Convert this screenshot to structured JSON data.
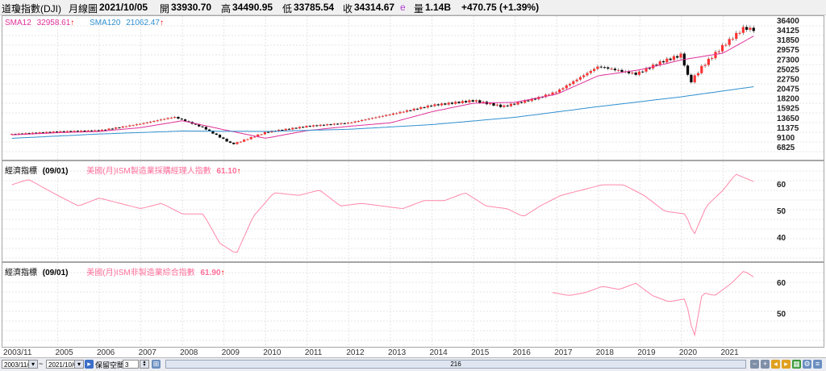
{
  "header": {
    "symbol": "道瓊指數(DJI)",
    "period": "月線圖",
    "date": "2021/10/05",
    "open_label": "開",
    "open": "33930.70",
    "high_label": "高",
    "high": "34490.95",
    "low_label": "低",
    "low": "33785.54",
    "close_label": "收",
    "close": "34314.67",
    "close_flag": "e",
    "volume_label": "量",
    "volume": "1.14B",
    "change": "+470.75 (+1.39%)"
  },
  "main_pane": {
    "sma12_label": "SMA12",
    "sma12_value": "32958.61",
    "sma120_label": "SMA120",
    "sma120_value": "21062.47",
    "arrow": "↑",
    "y_ticks": [
      "36400",
      "34125",
      "31850",
      "29575",
      "27300",
      "25025",
      "22750",
      "20475",
      "18200",
      "15925",
      "13650",
      "11375",
      "9100",
      "6825"
    ]
  },
  "pane2": {
    "label": "經濟指標",
    "date": "(09/01)",
    "series_name": "美國(月)ISM製造業採購經理人指數",
    "value": "61.10",
    "arrow": "↑",
    "y_ticks": [
      "60",
      "50",
      "40"
    ]
  },
  "pane3": {
    "label": "經濟指標",
    "date": "(09/01)",
    "series_name": "美國(月)ISM非製造業綜合指數",
    "value": "61.90",
    "arrow": "↑",
    "y_ticks": [
      "60",
      "50"
    ]
  },
  "x_axis": [
    "2003/11",
    "2005",
    "2006",
    "2007",
    "2008",
    "2009",
    "2010",
    "2011",
    "2012",
    "2013",
    "2014",
    "2015",
    "2016",
    "2017",
    "2018",
    "2019",
    "2020",
    "2021"
  ],
  "toolbar": {
    "start_date": "2003/11/28",
    "tilde": "~",
    "end_date": "2021/10/05",
    "keep_space_label": "保留空間",
    "keep_space_value": "3",
    "bar_count": "216"
  },
  "colors": {
    "up": "#ff3333",
    "down": "#000000",
    "sma12": "#e0309a",
    "sma120": "#2f8fd0",
    "pmi": "#ff88aa",
    "ism": "#ff88aa",
    "arrow": "#ff0000"
  },
  "chart_data": [
    {
      "type": "candlestick",
      "title": "道瓊指數(DJI) 月線圖",
      "ylim": [
        6825,
        36400
      ],
      "x_range": [
        "2003/11",
        "2021/10"
      ],
      "series": [
        {
          "name": "SMA12",
          "x": [
            2003.9,
            2005,
            2006,
            2007,
            2008,
            2009,
            2010,
            2011,
            2012,
            2013,
            2014,
            2015,
            2016,
            2017,
            2018,
            2019,
            2020,
            2021,
            2021.75
          ],
          "values": [
            9800,
            10300,
            10600,
            11500,
            13100,
            11000,
            9000,
            10800,
            11800,
            12600,
            15200,
            17200,
            17400,
            19300,
            23600,
            25000,
            27300,
            28900,
            32958.61
          ]
        },
        {
          "name": "SMA120",
          "x": [
            2003.9,
            2006,
            2008,
            2010,
            2012,
            2014,
            2016,
            2018,
            2020,
            2021.75
          ],
          "values": [
            9000,
            10000,
            10700,
            10600,
            11100,
            12200,
            13900,
            16400,
            18700,
            21062.47
          ]
        },
        {
          "name": "close",
          "x": [
            2003.9,
            2005,
            2006,
            2007,
            2007.8,
            2008.5,
            2009.2,
            2010,
            2011,
            2012,
            2013,
            2014,
            2015,
            2015.7,
            2016.5,
            2017,
            2018,
            2018.9,
            2019.5,
            2020,
            2020.2,
            2020.5,
            2021,
            2021.5,
            2021.75
          ],
          "values": [
            9900,
            10500,
            10800,
            12400,
            14000,
            11500,
            7600,
            10400,
            11800,
            12600,
            14600,
            16700,
            17800,
            16400,
            18300,
            19900,
            25800,
            24000,
            26800,
            28500,
            21900,
            25800,
            30600,
            34800,
            34314.67
          ]
        }
      ]
    },
    {
      "type": "line",
      "title": "美國(月)ISM製造業採購經理人指數",
      "ylim": [
        33,
        67
      ],
      "x": [
        2003.9,
        2004.3,
        2005,
        2005.5,
        2006,
        2006.5,
        2007,
        2007.5,
        2008,
        2008.5,
        2008.9,
        2009.3,
        2009.7,
        2010.2,
        2010.8,
        2011.3,
        2011.8,
        2012.3,
        2012.8,
        2013.3,
        2013.8,
        2014.3,
        2014.8,
        2015.3,
        2015.8,
        2016.2,
        2016.6,
        2017.1,
        2017.6,
        2018.1,
        2018.6,
        2019.1,
        2019.6,
        2020.1,
        2020.3,
        2020.6,
        2021,
        2021.3,
        2021.75
      ],
      "values": [
        60,
        62,
        56,
        52,
        55,
        53,
        51,
        53,
        49,
        49,
        38,
        34,
        48,
        57,
        56,
        58,
        52,
        53,
        52,
        51,
        54,
        54,
        57,
        52,
        51,
        48,
        52,
        56,
        58,
        60,
        60,
        56,
        50,
        49,
        41,
        52,
        58,
        64,
        61.1
      ]
    },
    {
      "type": "line",
      "title": "美國(月)ISM非製造業綜合指數",
      "ylim": [
        41,
        65
      ],
      "x": [
        2016.9,
        2017.3,
        2017.7,
        2018.1,
        2018.5,
        2018.9,
        2019.3,
        2019.7,
        2020.1,
        2020.3,
        2020.5,
        2020.8,
        2021.2,
        2021.5,
        2021.75
      ],
      "values": [
        57,
        56,
        57,
        59,
        58,
        60,
        56,
        54,
        55,
        42,
        57,
        56,
        60,
        64,
        61.9
      ]
    }
  ]
}
